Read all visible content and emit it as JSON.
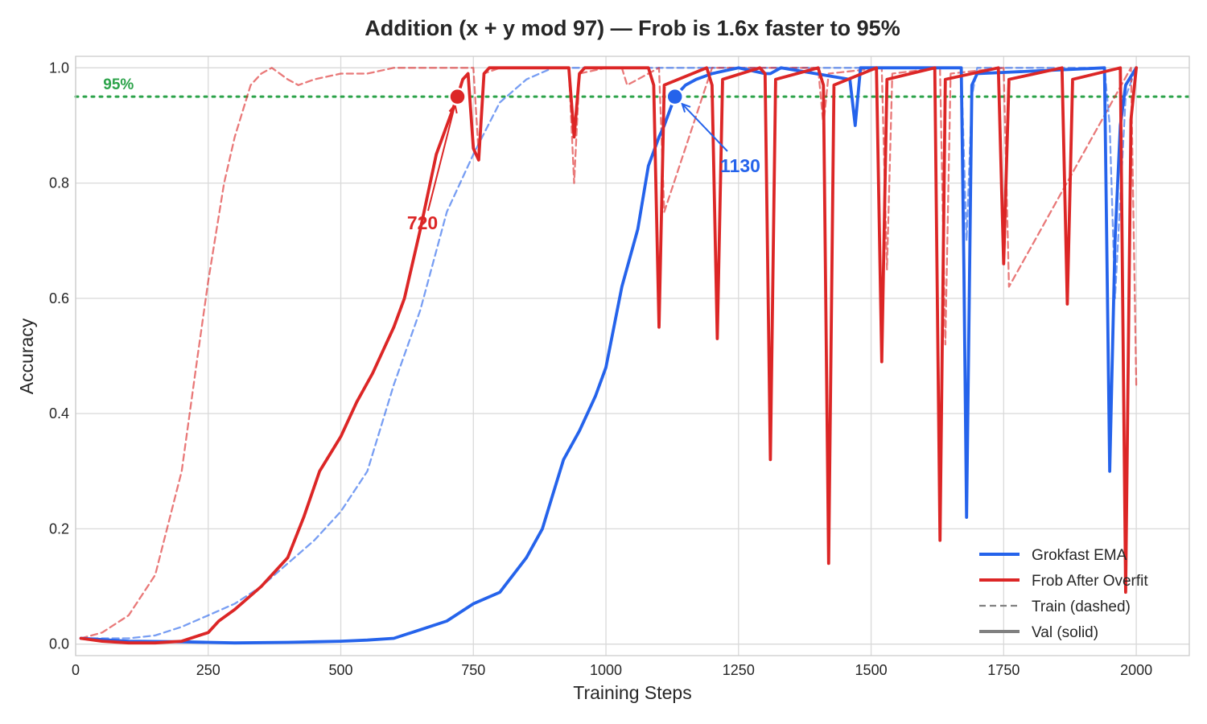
{
  "chart_data": {
    "type": "line",
    "title": "Addition (x + y mod 97)  —  Frob is 1.6x faster to 95%",
    "xlabel": "Training Steps",
    "ylabel": "Accuracy",
    "xlim": [
      0,
      2100
    ],
    "ylim": [
      -0.02,
      1.02
    ],
    "xticks": [
      0,
      250,
      500,
      750,
      1000,
      1250,
      1500,
      1750,
      2000
    ],
    "xtick_labels": [
      "0",
      "250",
      "500",
      "750",
      "1000",
      "1250",
      "1500",
      "1750",
      "2000"
    ],
    "yticks": [
      0.0,
      0.2,
      0.4,
      0.6,
      0.8,
      1.0
    ],
    "ytick_labels": [
      "0.0",
      "0.2",
      "0.4",
      "0.6",
      "0.8",
      "1.0"
    ],
    "grid": true,
    "legend_position": "lower-right",
    "threshold": {
      "y": 0.95,
      "label": "95%",
      "color": "#2ca34a"
    },
    "colors": {
      "grokfast": "#2563eb",
      "frob": "#dc2626",
      "legend_style": "#808080"
    },
    "legend": [
      "Grokfast EMA",
      "Frob After Overfit",
      "Train (dashed)",
      "Val (solid)"
    ],
    "series": [
      {
        "name": "Grokfast EMA",
        "split": "val",
        "x": [
          10,
          100,
          200,
          250,
          300,
          400,
          450,
          500,
          550,
          600,
          650,
          700,
          750,
          800,
          850,
          880,
          900,
          920,
          950,
          980,
          1000,
          1030,
          1060,
          1080,
          1100,
          1110,
          1130,
          1150,
          1170,
          1200,
          1250,
          1300,
          1310,
          1330,
          1460,
          1470,
          1480,
          1660,
          1670,
          1675,
          1680,
          1690,
          1700,
          1940,
          1950,
          1960,
          1970,
          1980,
          2000
        ],
        "y": [
          0.01,
          0.005,
          0.004,
          0.003,
          0.002,
          0.003,
          0.004,
          0.005,
          0.007,
          0.01,
          0.025,
          0.04,
          0.07,
          0.09,
          0.15,
          0.2,
          0.26,
          0.32,
          0.37,
          0.43,
          0.48,
          0.62,
          0.72,
          0.83,
          0.88,
          0.9,
          0.95,
          0.97,
          0.98,
          0.99,
          1.0,
          0.99,
          0.99,
          1.0,
          0.98,
          0.9,
          1.0,
          1.0,
          1.0,
          0.65,
          0.22,
          0.97,
          0.99,
          1.0,
          0.3,
          0.7,
          0.9,
          0.97,
          1.0
        ]
      },
      {
        "name": "Grokfast EMA",
        "split": "train",
        "x": [
          10,
          100,
          150,
          200,
          250,
          300,
          350,
          400,
          450,
          500,
          550,
          600,
          650,
          700,
          750,
          800,
          850,
          900,
          950,
          1000,
          1100,
          1200,
          1300,
          1400,
          1500,
          1600,
          1670,
          1680,
          1690,
          1700,
          1940,
          1950,
          1960,
          1980,
          2000
        ],
        "y": [
          0.01,
          0.01,
          0.015,
          0.03,
          0.05,
          0.07,
          0.1,
          0.14,
          0.18,
          0.23,
          0.3,
          0.45,
          0.58,
          0.75,
          0.85,
          0.94,
          0.98,
          1.0,
          1.0,
          1.0,
          1.0,
          1.0,
          1.0,
          1.0,
          1.0,
          1.0,
          1.0,
          0.7,
          0.95,
          1.0,
          1.0,
          0.9,
          0.6,
          0.95,
          1.0
        ]
      },
      {
        "name": "Frob After Overfit",
        "split": "val",
        "x": [
          10,
          50,
          100,
          150,
          200,
          250,
          270,
          300,
          350,
          400,
          430,
          460,
          500,
          530,
          560,
          600,
          620,
          650,
          680,
          700,
          720,
          730,
          740,
          750,
          760,
          770,
          780,
          820,
          900,
          930,
          940,
          950,
          960,
          1000,
          1080,
          1090,
          1100,
          1110,
          1190,
          1200,
          1210,
          1220,
          1290,
          1300,
          1310,
          1320,
          1400,
          1410,
          1420,
          1430,
          1510,
          1520,
          1530,
          1620,
          1630,
          1640,
          1740,
          1750,
          1760,
          1860,
          1870,
          1880,
          1970,
          1980,
          1990,
          2000
        ],
        "y": [
          0.01,
          0.005,
          0.002,
          0.002,
          0.005,
          0.02,
          0.04,
          0.06,
          0.1,
          0.15,
          0.22,
          0.3,
          0.36,
          0.42,
          0.47,
          0.55,
          0.6,
          0.72,
          0.85,
          0.9,
          0.95,
          0.98,
          0.99,
          0.86,
          0.84,
          0.99,
          1.0,
          1.0,
          1.0,
          1.0,
          0.88,
          0.99,
          1.0,
          1.0,
          1.0,
          0.97,
          0.55,
          0.97,
          1.0,
          0.97,
          0.53,
          0.98,
          1.0,
          0.99,
          0.32,
          0.98,
          1.0,
          0.97,
          0.14,
          0.97,
          1.0,
          0.49,
          0.98,
          1.0,
          0.18,
          0.98,
          1.0,
          0.66,
          0.98,
          1.0,
          0.59,
          0.98,
          1.0,
          0.09,
          0.91,
          1.0
        ]
      },
      {
        "name": "Frob After Overfit",
        "split": "train",
        "x": [
          10,
          50,
          100,
          150,
          200,
          230,
          250,
          280,
          300,
          330,
          350,
          370,
          400,
          420,
          450,
          500,
          550,
          600,
          700,
          750,
          760,
          770,
          800,
          930,
          940,
          950,
          1000,
          1030,
          1040,
          1100,
          1110,
          1200,
          1400,
          1410,
          1420,
          1520,
          1530,
          1540,
          1630,
          1640,
          1650,
          1750,
          1760,
          1990,
          2000
        ],
        "y": [
          0.01,
          0.02,
          0.05,
          0.12,
          0.3,
          0.5,
          0.63,
          0.8,
          0.88,
          0.97,
          0.99,
          1.0,
          0.98,
          0.97,
          0.98,
          0.99,
          0.99,
          1.0,
          1.0,
          1.0,
          0.85,
          0.99,
          1.0,
          1.0,
          0.8,
          0.99,
          1.0,
          1.0,
          0.97,
          1.0,
          0.75,
          1.0,
          1.0,
          0.9,
          0.99,
          1.0,
          0.65,
          0.99,
          1.0,
          0.52,
          0.99,
          1.0,
          0.62,
          1.0,
          0.45
        ]
      }
    ],
    "annotations": [
      {
        "label": "720",
        "x": 720,
        "y": 0.95,
        "color": "#dc2626"
      },
      {
        "label": "1130",
        "x": 1130,
        "y": 0.95,
        "color": "#2563eb"
      }
    ]
  }
}
